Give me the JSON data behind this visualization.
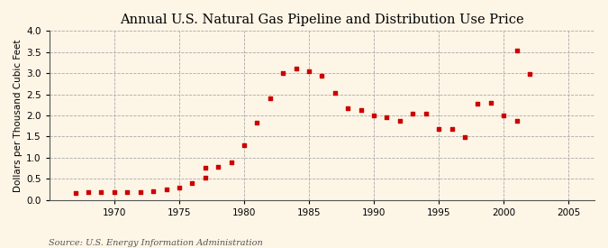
{
  "title": "Annual U.S. Natural Gas Pipeline and Distribution Use Price",
  "ylabel": "Dollars per Thousand Cubic Feet",
  "source": "Source: U.S. Energy Information Administration",
  "background_color": "#FDF5E6",
  "xlim": [
    1965,
    2007
  ],
  "ylim": [
    0.0,
    4.0
  ],
  "xticks": [
    1970,
    1975,
    1980,
    1985,
    1990,
    1995,
    2000,
    2005
  ],
  "yticks": [
    0.0,
    0.5,
    1.0,
    1.5,
    2.0,
    2.5,
    3.0,
    3.5,
    4.0
  ],
  "data": [
    [
      1967,
      0.17
    ],
    [
      1968,
      0.18
    ],
    [
      1969,
      0.18
    ],
    [
      1970,
      0.18
    ],
    [
      1971,
      0.18
    ],
    [
      1972,
      0.19
    ],
    [
      1973,
      0.2
    ],
    [
      1974,
      0.24
    ],
    [
      1975,
      0.3
    ],
    [
      1976,
      0.4
    ],
    [
      1977,
      0.52
    ],
    [
      1977,
      0.77
    ],
    [
      1978,
      0.79
    ],
    [
      1979,
      0.9
    ],
    [
      1980,
      1.3
    ],
    [
      1981,
      1.84
    ],
    [
      1982,
      2.4
    ],
    [
      1983,
      3.0
    ],
    [
      1984,
      3.12
    ],
    [
      1985,
      3.05
    ],
    [
      1986,
      2.95
    ],
    [
      1987,
      2.53
    ],
    [
      1988,
      2.17
    ],
    [
      1989,
      2.12
    ],
    [
      1990,
      2.0
    ],
    [
      1991,
      1.95
    ],
    [
      1992,
      1.88
    ],
    [
      1993,
      2.05
    ],
    [
      1994,
      2.05
    ],
    [
      1995,
      1.68
    ],
    [
      1996,
      1.68
    ],
    [
      1997,
      1.49
    ],
    [
      1998,
      2.27
    ],
    [
      1999,
      2.3
    ],
    [
      2000,
      2.0
    ],
    [
      2001,
      1.88
    ],
    [
      2002,
      2.99
    ],
    [
      2001,
      3.54
    ]
  ],
  "marker_color": "#CC0000",
  "marker": "s",
  "marker_size": 3.5,
  "title_fontsize": 10.5,
  "label_fontsize": 7.5,
  "tick_fontsize": 7.5,
  "source_fontsize": 7.0
}
